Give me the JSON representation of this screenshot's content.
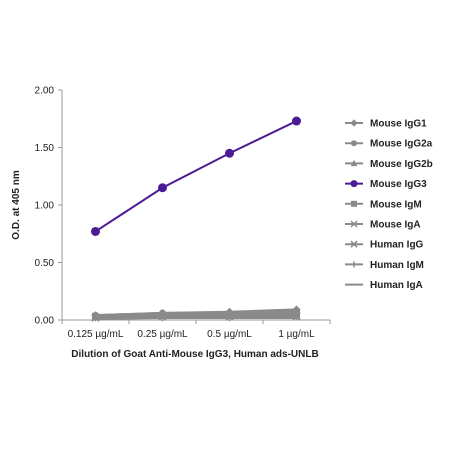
{
  "chart_data": {
    "type": "line",
    "title": "",
    "xlabel": "Dilution of Goat Anti-Mouse IgG3, Human ads-UNLB",
    "ylabel": "O.D. at 405 nm",
    "categories": [
      "0.125 µg/mL",
      "0.25 µg/mL",
      "0.5 µg/mL",
      "1 µg/mL"
    ],
    "ylim": [
      0,
      2
    ],
    "yticks": [
      "0.00",
      "0.50",
      "1.00",
      "1.50",
      "2.00"
    ],
    "grid": false,
    "legend_position": "right",
    "series": [
      {
        "name": "Mouse IgG1",
        "color": "#8a8a8a",
        "marker": "diamond",
        "values": [
          0.04,
          0.06,
          0.07,
          0.09
        ]
      },
      {
        "name": "Mouse IgG2a",
        "color": "#8a8a8a",
        "marker": "circle",
        "values": [
          0.04,
          0.06,
          0.06,
          0.07
        ]
      },
      {
        "name": "Mouse IgG2b",
        "color": "#8a8a8a",
        "marker": "triangle",
        "values": [
          0.03,
          0.05,
          0.05,
          0.06
        ]
      },
      {
        "name": "Mouse IgG3",
        "color": "#4b1b96",
        "marker": "circle",
        "values": [
          0.77,
          1.15,
          1.45,
          1.73
        ]
      },
      {
        "name": "Mouse IgM",
        "color": "#8a8a8a",
        "marker": "square",
        "values": [
          0.03,
          0.04,
          0.04,
          0.05
        ]
      },
      {
        "name": "Mouse IgA",
        "color": "#8a8a8a",
        "marker": "x",
        "values": [
          0.02,
          0.03,
          0.03,
          0.04
        ]
      },
      {
        "name": "Human IgG",
        "color": "#8a8a8a",
        "marker": "x",
        "values": [
          0.02,
          0.03,
          0.03,
          0.03
        ]
      },
      {
        "name": "Human IgM",
        "color": "#8a8a8a",
        "marker": "plus",
        "values": [
          0.02,
          0.02,
          0.02,
          0.03
        ]
      },
      {
        "name": "Human IgA",
        "color": "#8a8a8a",
        "marker": "none",
        "values": [
          0.01,
          0.02,
          0.02,
          0.02
        ]
      }
    ]
  }
}
